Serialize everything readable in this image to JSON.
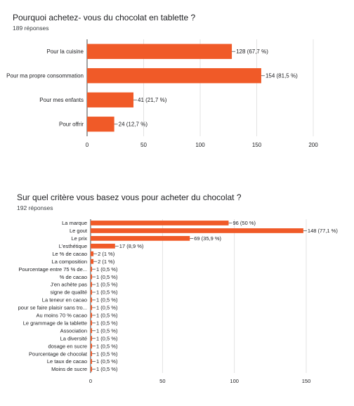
{
  "chart_data": [
    {
      "type": "bar",
      "orientation": "horizontal",
      "title": "Pourquoi achetez- vous du chocolat en tablette ?",
      "subtitle": "189 réponses",
      "categories": [
        "Pour la cuisine",
        "Pour ma propre consommation",
        "Pour mes enfants",
        "Pour offrir"
      ],
      "values": [
        128,
        154,
        41,
        24
      ],
      "value_labels": [
        "128 (67,7 %)",
        "154 (81,5 %)",
        "41 (21,7 %)",
        "24 (12,7 %)"
      ],
      "xlim": [
        0,
        200
      ],
      "ticks": [
        0,
        50,
        100,
        150,
        200
      ],
      "tick_labels": [
        "0",
        "50",
        "100",
        "150",
        "200"
      ],
      "grid": true,
      "color": "#f05a28"
    },
    {
      "type": "bar",
      "orientation": "horizontal",
      "title": "Sur quel critère vous basez vous pour acheter du chocolat ?",
      "subtitle": "192 réponses",
      "categories": [
        "La marque",
        "Le gout",
        "Le prix",
        "L'esthétique",
        "Le % de cacao",
        "La composition",
        "Pourcentage entre 75 % de...",
        "% de cacao",
        "J'en achète pas",
        "signe de qualité",
        "La teneur en cacao",
        "pour se faire plaisir sans tro...",
        "Au moins 70 % cacao",
        "Le grammage de la tablette",
        "Association",
        "La diversité",
        "dosage en sucre",
        "Pourcentage de chocolat",
        "Le taux de cacao",
        "Moins de sucre"
      ],
      "values": [
        96,
        148,
        69,
        17,
        2,
        2,
        1,
        1,
        1,
        1,
        1,
        1,
        1,
        1,
        1,
        1,
        1,
        1,
        1,
        1
      ],
      "value_labels": [
        "96 (50 %)",
        "148 (77,1 %)",
        "69 (35,9 %)",
        "17 (8,9 %)",
        "2 (1 %)",
        "2 (1 %)",
        "1 (0,5 %)",
        "1 (0,5 %)",
        "1 (0,5 %)",
        "1 (0,5 %)",
        "1 (0,5 %)",
        "1 (0,5 %)",
        "1 (0,5 %)",
        "1 (0,5 %)",
        "1 (0,5 %)",
        "1 (0,5 %)",
        "1 (0,5 %)",
        "1 (0,5 %)",
        "1 (0,5 %)",
        "1 (0,5 %)"
      ],
      "xlim": [
        0,
        150
      ],
      "ticks": [
        0,
        50,
        100,
        150
      ],
      "tick_labels": [
        "0",
        "50",
        "100",
        "150"
      ],
      "grid": true,
      "color": "#f05a28"
    }
  ]
}
